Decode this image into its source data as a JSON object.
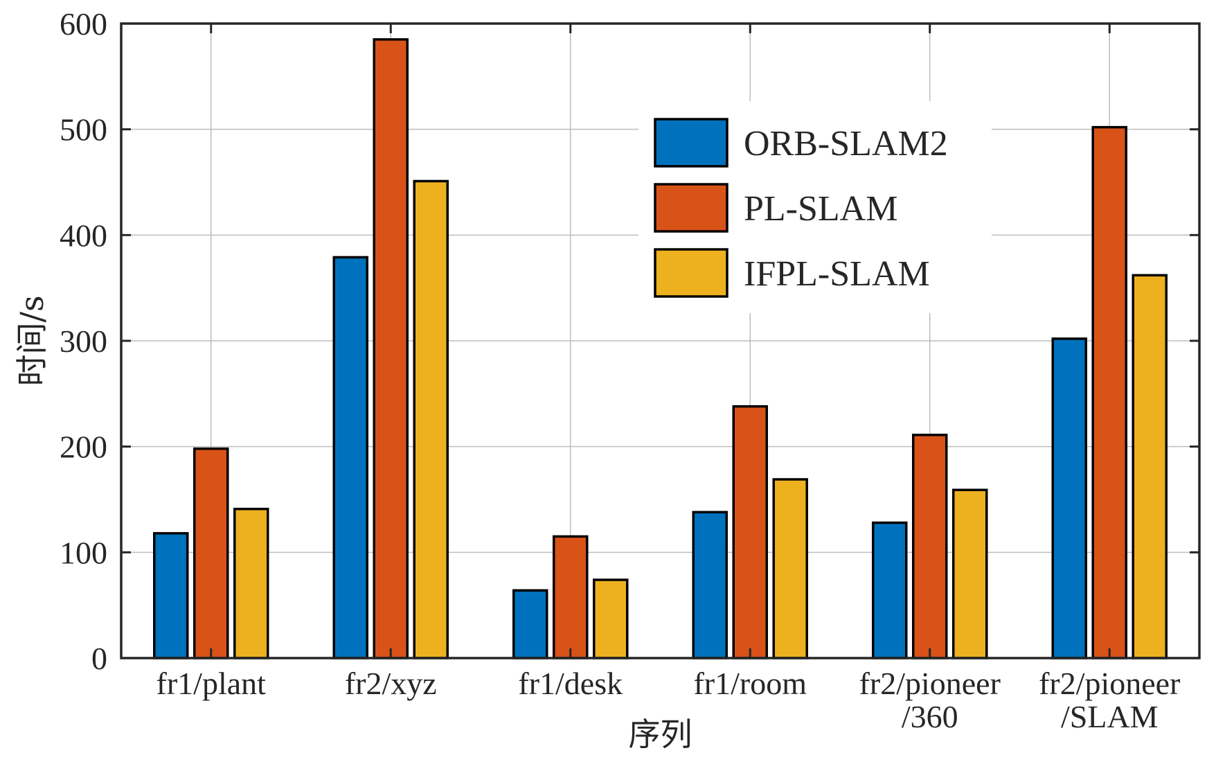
{
  "chart_data": {
    "type": "bar",
    "categories": [
      [
        "fr1/plant"
      ],
      [
        "fr2/xyz"
      ],
      [
        "fr1/desk"
      ],
      [
        "fr1/room"
      ],
      [
        "fr2/pioneer",
        "/360"
      ],
      [
        "fr2/pioneer",
        "/SLAM"
      ]
    ],
    "series": [
      {
        "name": "ORB-SLAM2",
        "color": "#0072BD",
        "values": [
          118,
          379,
          64,
          138,
          128,
          302
        ]
      },
      {
        "name": "PL-SLAM",
        "color": "#D95319",
        "values": [
          198,
          585,
          115,
          238,
          211,
          502
        ]
      },
      {
        "name": "IFPL-SLAM",
        "color": "#EDB120",
        "values": [
          141,
          451,
          74,
          169,
          159,
          362
        ]
      }
    ],
    "xlabel": "序列",
    "ylabel": "时间/s",
    "ylim": [
      0,
      600
    ],
    "yticks": [
      0,
      100,
      200,
      300,
      400,
      500,
      600
    ],
    "grid": true,
    "legend_position": "top-right"
  }
}
